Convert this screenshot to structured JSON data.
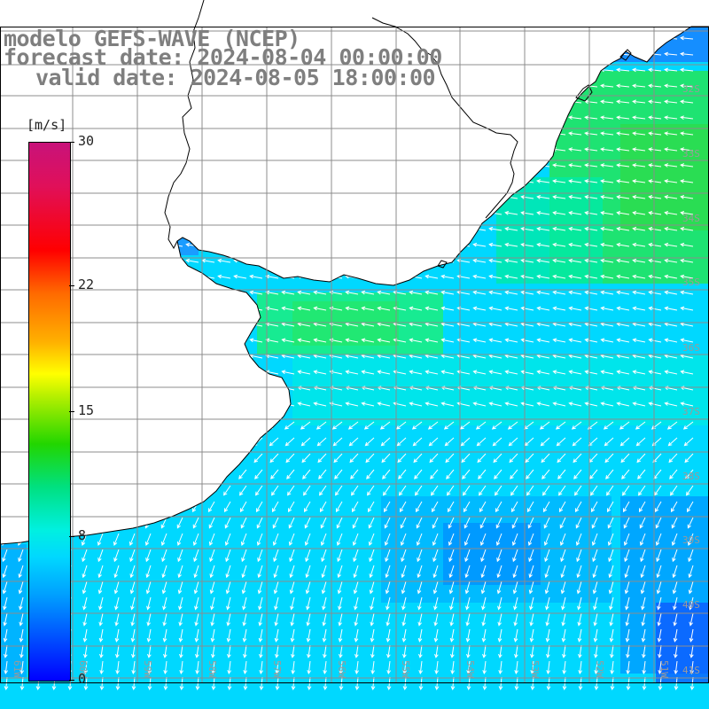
{
  "title": {
    "line1": "modelo GEFS-WAVE (NCEP)",
    "line2": "forecast date: 2024-08-04 00:00:00",
    "line3": "valid date: 2024-08-05 18:00:00"
  },
  "colorbar": {
    "unit": "[m/s]",
    "ticks": [
      {
        "label": "30",
        "value": 30
      },
      {
        "label": "22",
        "value": 22
      },
      {
        "label": "15",
        "value": 15
      },
      {
        "label": "8",
        "value": 8
      },
      {
        "label": "0",
        "value": 0
      }
    ]
  },
  "latitude_labels": [
    "32S",
    "33S",
    "34S",
    "35S",
    "36S",
    "37S",
    "38S",
    "39S",
    "40S",
    "41S"
  ],
  "longitude_labels": [
    "61W",
    "60W",
    "59W",
    "58W",
    "57W",
    "56W",
    "55W",
    "54W",
    "53W",
    "52W",
    "51W"
  ],
  "colors": {
    "land": "#ffffff",
    "grid": "#8c8c8c",
    "coast": "#000000",
    "arrows": "#ffffff",
    "title": "#7f7f7f"
  }
}
